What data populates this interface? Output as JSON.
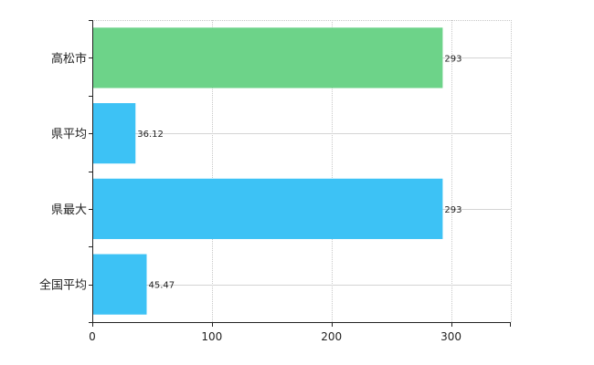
{
  "chart_data": {
    "type": "bar",
    "orientation": "horizontal",
    "categories": [
      "高松市",
      "県平均",
      "県最大",
      "全国平均"
    ],
    "values": [
      293,
      36.12,
      293,
      45.47
    ],
    "data_labels": [
      "293",
      "36.12",
      "293",
      "45.47"
    ],
    "bar_colors": [
      "#6dd389",
      "#3dc2f5",
      "#3dc2f5",
      "#3dc2f5"
    ],
    "xlim": [
      0,
      350
    ],
    "xticks": [
      0,
      100,
      200,
      300
    ],
    "xtick_labels": [
      "0",
      "100",
      "200",
      "300"
    ],
    "grid": true,
    "grid_style": "dotted",
    "legend": "none"
  }
}
